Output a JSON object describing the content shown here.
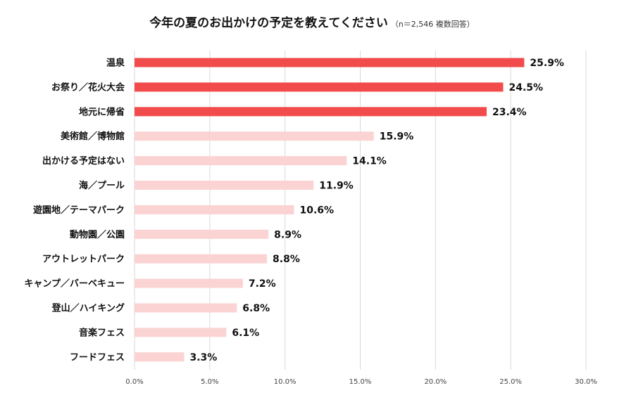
{
  "title": "今年の夏のお出かけの予定を教えてください",
  "subtitle": "（n＝2,546 複数回答）",
  "colors": {
    "highlight": "#f24b4b",
    "normal": "#fbd3d3",
    "grid": "#d9d9d9"
  },
  "chart_data": {
    "type": "bar",
    "orientation": "horizontal",
    "categories": [
      "温泉",
      "お祭り／花火大会",
      "地元に帰省",
      "美術館／博物館",
      "出かける予定はない",
      "海／プール",
      "遊園地／テーマパーク",
      "動物園／公園",
      "アウトレットパーク",
      "キャンプ／バーベキュー",
      "登山／ハイキング",
      "音楽フェス",
      "フードフェス"
    ],
    "values": [
      25.9,
      24.5,
      23.4,
      15.9,
      14.1,
      11.9,
      10.6,
      8.9,
      8.8,
      7.2,
      6.8,
      6.1,
      3.3
    ],
    "value_labels": [
      "25.9%",
      "24.5%",
      "23.4%",
      "15.9%",
      "14.1%",
      "11.9%",
      "10.6%",
      "8.9%",
      "8.8%",
      "7.2%",
      "6.8%",
      "6.1%",
      "3.3%"
    ],
    "highlighted_top": 3,
    "xlim": [
      0,
      30
    ],
    "xticks": [
      0,
      5,
      10,
      15,
      20,
      25,
      30
    ],
    "xtick_labels": [
      "0.0%",
      "5.0%",
      "10.0%",
      "15.0%",
      "20.0%",
      "25.0%",
      "30.0%"
    ],
    "grid": true,
    "legend": false
  }
}
